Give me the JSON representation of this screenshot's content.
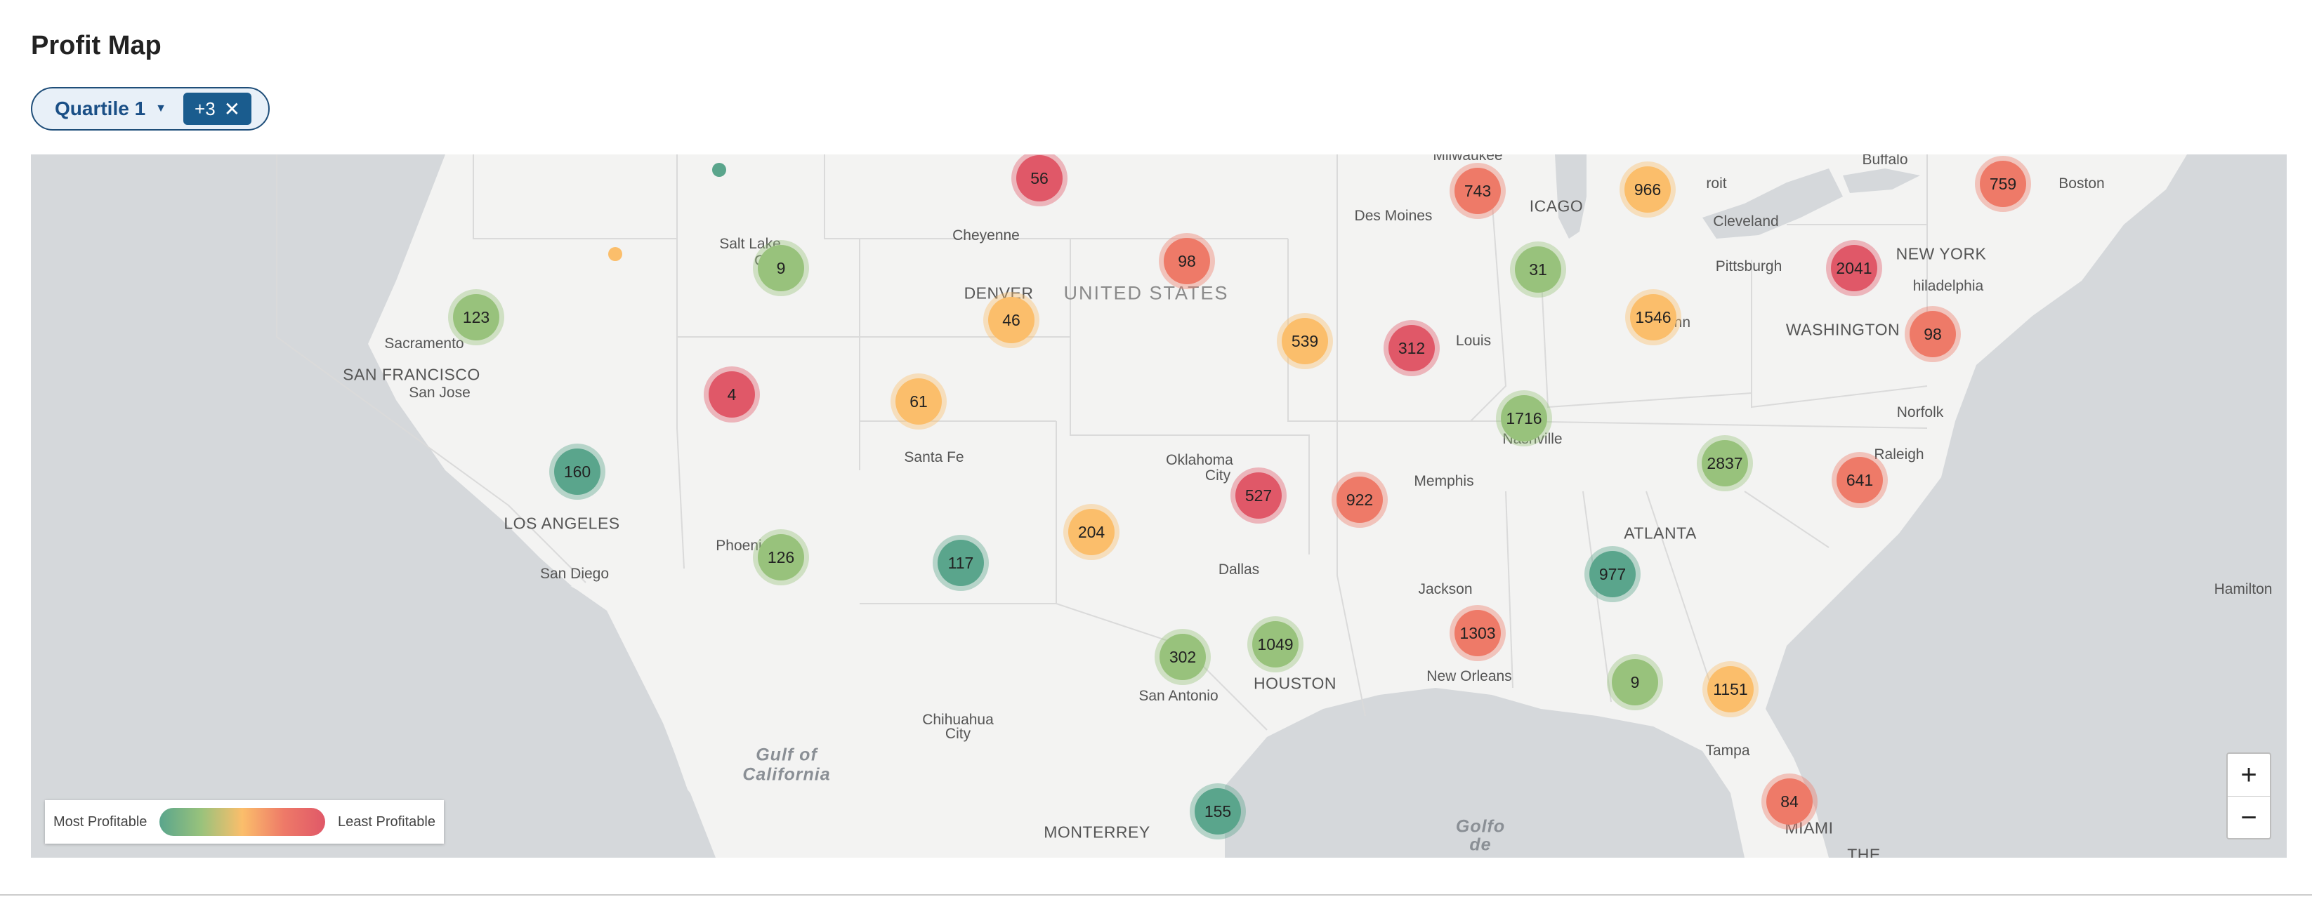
{
  "header": {
    "title": "Profit Map"
  },
  "filter": {
    "label": "Quartile 1",
    "more_count": "+3",
    "clear_icon": "close-icon",
    "dropdown_icon": "chevron-down-icon"
  },
  "legend": {
    "left": "Most Profitable",
    "right": "Least Profitable"
  },
  "zoom": {
    "in_label": "+",
    "out_label": "−"
  },
  "colors": {
    "green_dark": "#5aa58c",
    "green_light": "#98c27c",
    "yellow": "#fbbe6b",
    "salmon": "#ee7a68",
    "red": "#e05868",
    "water": "#d5d8db",
    "land": "#f3f3f2"
  },
  "labels": [
    {
      "text": "Milwaukee",
      "kind": "city"
    },
    {
      "text": "Buffalo",
      "kind": "city"
    },
    {
      "text": "Boston",
      "kind": "city"
    },
    {
      "text": "Salt Lake",
      "kind": "city"
    },
    {
      "text": "Ci",
      "kind": "city"
    },
    {
      "text": "Cheyenne",
      "kind": "city"
    },
    {
      "text": "Des Moines",
      "kind": "city"
    },
    {
      "text": "ICAGO",
      "kind": "big"
    },
    {
      "text": "roit",
      "kind": "city"
    },
    {
      "text": "Cleveland",
      "kind": "city"
    },
    {
      "text": "NEW YORK",
      "kind": "big"
    },
    {
      "text": "Pittsburgh",
      "kind": "city"
    },
    {
      "text": "hiladelphia",
      "kind": "city"
    },
    {
      "text": "DENVER",
      "kind": "big"
    },
    {
      "text": "UNITED STATES",
      "kind": "country"
    },
    {
      "text": "Cincinn",
      "kind": "city"
    },
    {
      "text": "WASHINGTON",
      "kind": "big"
    },
    {
      "text": "Sacramento",
      "kind": "city"
    },
    {
      "text": "SAN FRANCISCO",
      "kind": "big"
    },
    {
      "text": "San Jose",
      "kind": "city"
    },
    {
      "text": "Louis",
      "kind": "city"
    },
    {
      "text": "Nashville",
      "kind": "city"
    },
    {
      "text": "Norfolk",
      "kind": "city"
    },
    {
      "text": "Santa Fe",
      "kind": "city"
    },
    {
      "text": "Oklahoma",
      "kind": "city"
    },
    {
      "text": "City",
      "kind": "city"
    },
    {
      "text": "Memphis",
      "kind": "city"
    },
    {
      "text": "Raleigh",
      "kind": "city"
    },
    {
      "text": "LOS ANGELES",
      "kind": "big"
    },
    {
      "text": "ATLANTA",
      "kind": "big"
    },
    {
      "text": "Phoeni",
      "kind": "city"
    },
    {
      "text": "San Diego",
      "kind": "city"
    },
    {
      "text": "Dallas",
      "kind": "city"
    },
    {
      "text": "Jackson",
      "kind": "city"
    },
    {
      "text": "Hamilton",
      "kind": "city"
    },
    {
      "text": "HOUSTON",
      "kind": "big"
    },
    {
      "text": "New Orleans",
      "kind": "city"
    },
    {
      "text": "San Antonio",
      "kind": "city"
    },
    {
      "text": "Chihuahua",
      "kind": "city"
    },
    {
      "text": "City",
      "kind": "city"
    },
    {
      "text": "Gulf of",
      "kind": "sea"
    },
    {
      "text": "California",
      "kind": "sea"
    },
    {
      "text": "Tampa",
      "kind": "city"
    },
    {
      "text": "MONTERREY",
      "kind": "big"
    },
    {
      "text": "Golfo",
      "kind": "sea"
    },
    {
      "text": "de",
      "kind": "sea"
    },
    {
      "text": "MIAMI",
      "kind": "big"
    },
    {
      "text": "THE",
      "kind": "big"
    }
  ],
  "clusters": [
    {
      "value": "56",
      "color": "red"
    },
    {
      "value": "743",
      "color": "salmon"
    },
    {
      "value": "966",
      "color": "yellow"
    },
    {
      "value": "759",
      "color": "salmon"
    },
    {
      "value": "9",
      "color": "green_light"
    },
    {
      "value": "98",
      "color": "salmon"
    },
    {
      "value": "31",
      "color": "green_light"
    },
    {
      "value": "2041",
      "color": "red"
    },
    {
      "value": "123",
      "color": "green_light"
    },
    {
      "value": "46",
      "color": "yellow"
    },
    {
      "value": "1546",
      "color": "yellow"
    },
    {
      "value": "539",
      "color": "yellow"
    },
    {
      "value": "312",
      "color": "red"
    },
    {
      "value": "98",
      "color": "salmon"
    },
    {
      "value": "4",
      "color": "red"
    },
    {
      "value": "61",
      "color": "yellow"
    },
    {
      "value": "1716",
      "color": "green_light"
    },
    {
      "value": "2837",
      "color": "green_light"
    },
    {
      "value": "160",
      "color": "green_dark"
    },
    {
      "value": "527",
      "color": "red"
    },
    {
      "value": "922",
      "color": "salmon"
    },
    {
      "value": "641",
      "color": "salmon"
    },
    {
      "value": "204",
      "color": "yellow"
    },
    {
      "value": "126",
      "color": "green_light"
    },
    {
      "value": "117",
      "color": "green_dark"
    },
    {
      "value": "977",
      "color": "green_dark"
    },
    {
      "value": "1303",
      "color": "salmon"
    },
    {
      "value": "1049",
      "color": "green_light"
    },
    {
      "value": "302",
      "color": "green_light"
    },
    {
      "value": "9",
      "color": "green_light"
    },
    {
      "value": "1151",
      "color": "yellow"
    },
    {
      "value": "155",
      "color": "green_dark"
    },
    {
      "value": "84",
      "color": "salmon"
    }
  ],
  "dots": [
    {
      "color": "green_dark"
    },
    {
      "color": "yellow"
    }
  ]
}
